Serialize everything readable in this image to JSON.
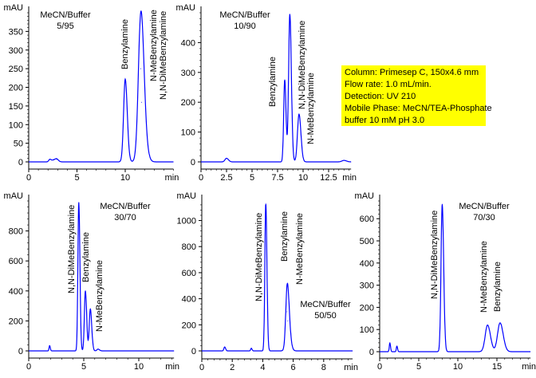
{
  "info_box": {
    "lines": [
      "Column: Primesep C, 150x4.6 mm",
      "Flow rate: 1.0 mL/min.",
      "Detection: UV 210",
      "Mobile Phase: MeCN/TEA-Phosphate",
      "buffer 10 mM pH 3.0"
    ],
    "background": "#ffff00"
  },
  "chart_data": [
    {
      "type": "line",
      "title": "MeCN/Buffer",
      "subtitle": "5/95",
      "ylabel": "mAU",
      "xlabel": "min",
      "ylim": [
        0,
        400
      ],
      "xlim": [
        0,
        15
      ],
      "yticks": [
        0,
        50,
        100,
        150,
        200,
        250,
        300,
        350
      ],
      "xticks": [
        0,
        5,
        10
      ],
      "color": "#0000ff",
      "peaks": [
        {
          "name": "",
          "rt": 2.2,
          "height": 7,
          "width": 0.12
        },
        {
          "name": "",
          "rt": 2.6,
          "height": 5,
          "width": 0.15
        },
        {
          "name": "",
          "rt": 2.9,
          "height": 7,
          "width": 0.15
        },
        {
          "name": "Benzylamine",
          "rt": 10.0,
          "height": 222,
          "width": 0.17
        },
        {
          "name": "N-MeBenzylamine",
          "rt": 11.6,
          "height": 250,
          "width": 0.24
        },
        {
          "name": "N,N-DiMeBenzylamine",
          "rt": 11.7,
          "height": 160,
          "width": 0.3
        }
      ]
    },
    {
      "type": "line",
      "title": "MeCN/Buffer",
      "subtitle": "10/90",
      "ylabel": "mAU",
      "xlabel": "min",
      "ylim": [
        0,
        500
      ],
      "xlim": [
        0,
        14.7
      ],
      "yticks": [
        0,
        100,
        200,
        300,
        400
      ],
      "xticks": [
        0,
        2.5,
        5,
        7.5,
        10,
        12.5
      ],
      "color": "#0000ff",
      "peaks": [
        {
          "name": "",
          "rt": 2.5,
          "height": 12,
          "width": 0.15
        },
        {
          "name": "",
          "rt": 14.0,
          "height": 5,
          "width": 0.2
        },
        {
          "name": "Benzylamine",
          "rt": 8.2,
          "height": 275,
          "width": 0.1
        },
        {
          "name": "N,N-DiMeBenzylamine",
          "rt": 8.7,
          "height": 495,
          "width": 0.12
        },
        {
          "name": "N-MeBenzylamine",
          "rt": 9.6,
          "height": 160,
          "width": 0.15
        }
      ]
    },
    {
      "type": "line",
      "title": "MeCN/Buffer",
      "subtitle": "30/70",
      "ylabel": "mAU",
      "xlabel": "min",
      "ylim": [
        0,
        1000
      ],
      "xlim": [
        0,
        13.2
      ],
      "yticks": [
        0,
        200,
        400,
        600,
        800
      ],
      "xticks": [
        0,
        5,
        10
      ],
      "color": "#0000ff",
      "peaks": [
        {
          "name": "",
          "rt": 1.9,
          "height": 35,
          "width": 0.05
        },
        {
          "name": "",
          "rt": 6.3,
          "height": 12,
          "width": 0.1
        },
        {
          "name": "N,N-DiMeBenzylamine",
          "rt": 4.55,
          "height": 990,
          "width": 0.08
        },
        {
          "name": "Benzylamine",
          "rt": 5.15,
          "height": 400,
          "width": 0.09
        },
        {
          "name": "N-MeBenzylamine",
          "rt": 5.6,
          "height": 280,
          "width": 0.1
        }
      ]
    },
    {
      "type": "line",
      "title": "MeCN/Buffer",
      "subtitle": "50/50",
      "ylabel": "mAU",
      "xlabel": "min",
      "ylim": [
        0,
        1150
      ],
      "xlim": [
        0,
        9.9
      ],
      "yticks": [
        0,
        200,
        400,
        600,
        800,
        1000
      ],
      "xticks": [
        0,
        2,
        4,
        6,
        8
      ],
      "color": "#0000ff",
      "peaks": [
        {
          "name": "",
          "rt": 1.5,
          "height": 30,
          "width": 0.05
        },
        {
          "name": "",
          "rt": 3.25,
          "height": 20,
          "width": 0.04
        },
        {
          "name": "N,N-DiMeBenzylamine",
          "rt": 4.2,
          "height": 1130,
          "width": 0.06
        },
        {
          "name": "Benzylamine",
          "rt": 5.6,
          "height": 300,
          "width": 0.09
        },
        {
          "name": "N-MeBenzylamine",
          "rt": 5.65,
          "height": 230,
          "width": 0.12
        }
      ]
    },
    {
      "type": "line",
      "title": "MeCN/Buffer",
      "subtitle": "70/30",
      "ylabel": "mAU",
      "xlabel": "min",
      "ylim": [
        0,
        680
      ],
      "xlim": [
        0,
        19.3
      ],
      "yticks": [
        0,
        100,
        200,
        300,
        400,
        500,
        600
      ],
      "xticks": [
        0,
        5,
        10,
        15
      ],
      "color": "#0000ff",
      "peaks": [
        {
          "name": "",
          "rt": 1.3,
          "height": 40,
          "width": 0.07
        },
        {
          "name": "",
          "rt": 2.2,
          "height": 25,
          "width": 0.07
        },
        {
          "name": "N,N-DiMeBenzylamine",
          "rt": 8.0,
          "height": 665,
          "width": 0.15
        },
        {
          "name": "N-MeBenzylamine",
          "rt": 13.8,
          "height": 120,
          "width": 0.3
        },
        {
          "name": "Benzylamine",
          "rt": 15.4,
          "height": 130,
          "width": 0.32
        }
      ]
    }
  ]
}
